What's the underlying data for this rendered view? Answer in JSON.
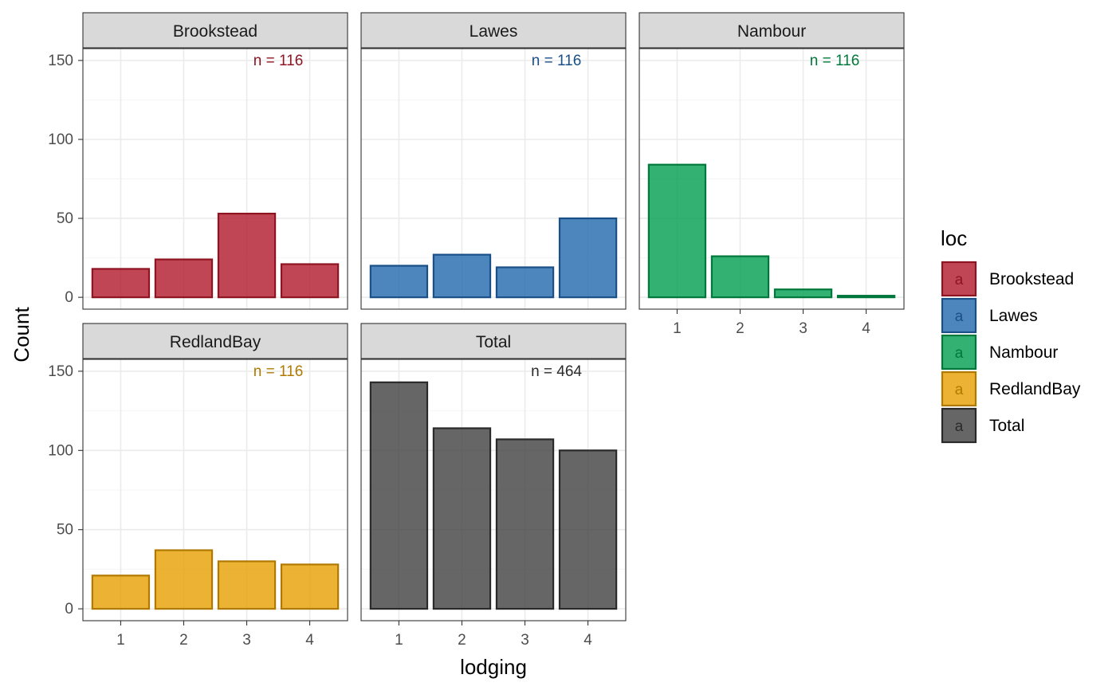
{
  "chart_data": {
    "type": "bar",
    "facet_layout": "wrap",
    "xlabel": "lodging",
    "ylabel": "Count",
    "categories": [
      "1",
      "2",
      "3",
      "4"
    ],
    "ylim": [
      0,
      150
    ],
    "yticks": [
      0,
      50,
      100,
      150
    ],
    "grid": true,
    "legend": {
      "title": "loc",
      "placement": "right",
      "key_glyph": "a",
      "entries": [
        "Brookstead",
        "Lawes",
        "Nambour",
        "RedlandBay",
        "Total"
      ]
    },
    "panels": [
      {
        "name": "Brookstead",
        "values": [
          18,
          24,
          53,
          21
        ],
        "annotation": "n = 116",
        "fill": "#B2182B",
        "stroke": "#8E1422"
      },
      {
        "name": "Lawes",
        "values": [
          20,
          27,
          19,
          50
        ],
        "annotation": "n = 116",
        "fill": "#2166AC",
        "stroke": "#1A4F87"
      },
      {
        "name": "Nambour",
        "values": [
          84,
          26,
          5,
          1
        ],
        "annotation": "n = 116",
        "fill": "#009E4F",
        "stroke": "#00783C"
      },
      {
        "name": "RedlandBay",
        "values": [
          21,
          37,
          30,
          28
        ],
        "annotation": "n = 116",
        "fill": "#E69F00",
        "stroke": "#B07900"
      },
      {
        "name": "Total",
        "values": [
          143,
          114,
          107,
          100
        ],
        "annotation": "n = 464",
        "fill": "#404040",
        "stroke": "#2A2A2A"
      }
    ]
  }
}
